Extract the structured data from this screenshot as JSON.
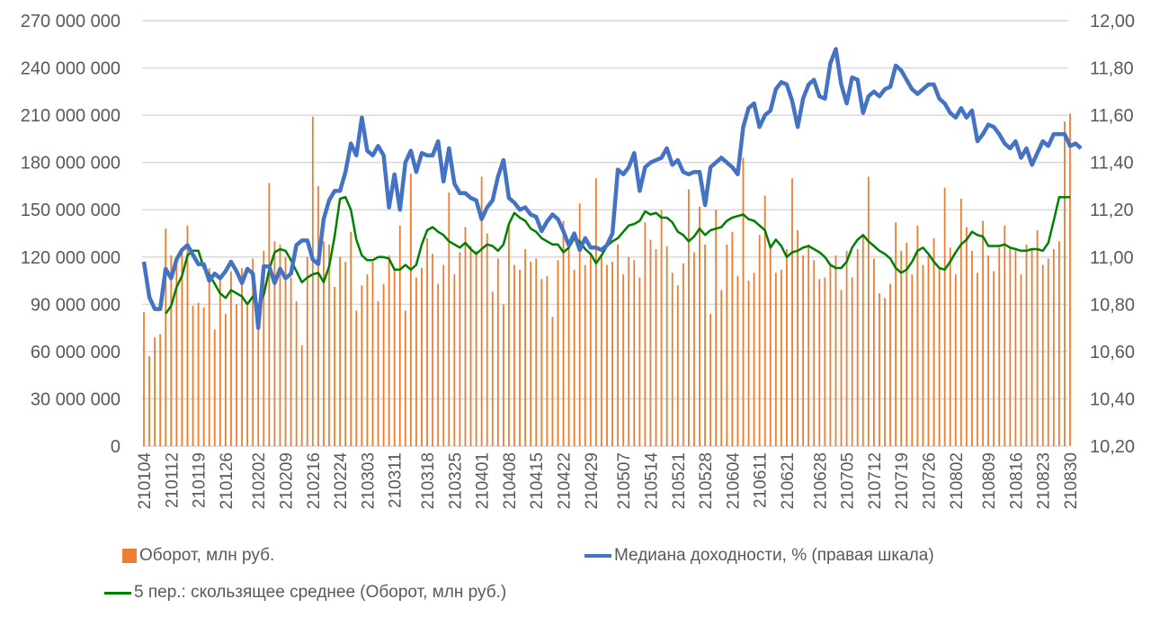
{
  "chart_data": {
    "type": "bar+line",
    "title": "",
    "left_axis": {
      "min": 0,
      "max": 270000000,
      "step": 30000000,
      "tick_labels": [
        "0",
        "30 000 000",
        "60 000 000",
        "90 000 000",
        "120 000 000",
        "150 000 000",
        "180 000 000",
        "210 000 000",
        "240 000 000",
        "270 000 000"
      ]
    },
    "right_axis": {
      "min": 10.2,
      "max": 12.0,
      "step": 0.2,
      "tick_labels": [
        "10,20",
        "10,40",
        "10,60",
        "10,80",
        "11,00",
        "11,20",
        "11,40",
        "11,60",
        "11,80",
        "12,00"
      ]
    },
    "x_tick_labels": [
      "210104",
      "210112",
      "210119",
      "210126",
      "210202",
      "210209",
      "210216",
      "210224",
      "210303",
      "210311",
      "210318",
      "210325",
      "210401",
      "210408",
      "210415",
      "210422",
      "210429",
      "210507",
      "210514",
      "210521",
      "210528",
      "210604",
      "210611",
      "210621",
      "210628",
      "210705",
      "210712",
      "210719",
      "210726",
      "210802",
      "210809",
      "210816",
      "210823",
      "210830"
    ],
    "grid": true,
    "legend_position": "bottom",
    "series": [
      {
        "name": "Оборот, млн руб.",
        "type": "bar",
        "axis": "left",
        "color": "#ED7D31",
        "values": [
          85,
          57,
          69,
          71,
          138,
          121,
          116,
          125,
          140,
          89,
          91,
          88,
          113,
          74,
          108,
          84,
          111,
          90,
          113,
          89,
          119,
          82,
          124,
          167,
          130,
          128,
          120,
          107,
          92,
          64,
          120,
          209,
          165,
          130,
          128,
          101,
          120,
          117,
          136,
          86,
          102,
          109,
          117,
          92,
          103,
          121,
          113,
          140,
          86,
          173,
          107,
          113,
          132,
          122,
          103,
          115,
          161,
          109,
          123,
          139,
          127,
          124,
          171,
          135,
          98,
          119,
          90,
          141,
          115,
          112,
          125,
          117,
          119,
          106,
          108,
          82,
          118,
          143,
          127,
          112,
          154,
          115,
          122,
          170,
          121,
          115,
          117,
          128,
          109,
          120,
          118,
          107,
          142,
          131,
          125,
          150,
          127,
          110,
          102,
          116,
          163,
          123,
          152,
          128,
          84,
          150,
          99,
          128,
          136,
          108,
          183,
          105,
          110,
          134,
          159,
          128,
          110,
          112,
          125,
          170,
          137,
          121,
          128,
          118,
          106,
          107,
          115,
          121,
          99,
          124,
          107,
          125,
          133,
          171,
          119,
          97,
          94,
          103,
          142,
          124,
          129,
          109,
          140,
          115,
          121,
          132,
          113,
          164,
          126,
          109,
          157,
          139,
          124,
          110,
          143,
          121,
          111,
          126,
          140,
          126,
          124,
          109,
          128,
          125,
          137,
          115,
          119,
          125,
          130,
          206,
          211
        ]
      },
      {
        "name": "Медиана доходности, % (правая шкала)",
        "type": "line",
        "axis": "right",
        "color": "#4472C4",
        "values": [
          10.98,
          10.83,
          10.78,
          10.78,
          10.95,
          10.91,
          10.99,
          11.03,
          11.05,
          11.01,
          10.97,
          10.97,
          10.9,
          10.93,
          10.91,
          10.94,
          10.98,
          10.94,
          10.89,
          10.95,
          10.93,
          10.7,
          10.96,
          10.96,
          10.89,
          10.95,
          10.91,
          10.93,
          11.05,
          11.07,
          11.07,
          10.99,
          10.97,
          11.16,
          11.24,
          11.28,
          11.28,
          11.36,
          11.48,
          11.43,
          11.59,
          11.45,
          11.43,
          11.47,
          11.43,
          11.21,
          11.35,
          11.2,
          11.4,
          11.45,
          11.36,
          11.44,
          11.43,
          11.43,
          11.49,
          11.32,
          11.46,
          11.31,
          11.27,
          11.27,
          11.25,
          11.24,
          11.16,
          11.21,
          11.24,
          11.34,
          11.41,
          11.25,
          11.23,
          11.2,
          11.21,
          11.18,
          11.17,
          11.11,
          11.15,
          11.18,
          11.16,
          11.11,
          11.05,
          11.1,
          11.03,
          11.08,
          11.04,
          11.04,
          11.03,
          11.05,
          11.1,
          11.37,
          11.35,
          11.38,
          11.44,
          11.28,
          11.38,
          11.4,
          11.41,
          11.42,
          11.46,
          11.39,
          11.41,
          11.36,
          11.35,
          11.36,
          11.36,
          11.22,
          11.38,
          11.4,
          11.42,
          11.4,
          11.38,
          11.35,
          11.55,
          11.63,
          11.65,
          11.55,
          11.6,
          11.62,
          11.71,
          11.74,
          11.73,
          11.66,
          11.55,
          11.67,
          11.73,
          11.75,
          11.68,
          11.67,
          11.82,
          11.88,
          11.73,
          11.65,
          11.76,
          11.75,
          11.61,
          11.68,
          11.7,
          11.68,
          11.71,
          11.72,
          11.81,
          11.79,
          11.75,
          11.71,
          11.69,
          11.71,
          11.73,
          11.73,
          11.67,
          11.65,
          11.61,
          11.59,
          11.63,
          11.59,
          11.62,
          11.49,
          11.52,
          11.56,
          11.55,
          11.52,
          11.48,
          11.46,
          11.49,
          11.42,
          11.46,
          11.39,
          11.44,
          11.49,
          11.47,
          11.52,
          11.52,
          11.52,
          11.47,
          11.48,
          11.46
        ]
      },
      {
        "name": "5 пер.: скользящее среднее (Оборот, млн руб.)",
        "type": "line",
        "axis": "left",
        "color": "#008000",
        "values": [
          null,
          null,
          null,
          null,
          84,
          89,
          101,
          108,
          121,
          124,
          124,
          113,
          109,
          103,
          97,
          94,
          99,
          97,
          95,
          90,
          95,
          89,
          96,
          112,
          123,
          125,
          124,
          118,
          111,
          104,
          107,
          109,
          110,
          104,
          114,
          133,
          157,
          158,
          150,
          131,
          121,
          118,
          118,
          120,
          120,
          119,
          112,
          112,
          115,
          112,
          115,
          128,
          137,
          139,
          136,
          134,
          130,
          128,
          126,
          129,
          125,
          122,
          125,
          128,
          127,
          124,
          128,
          141,
          148,
          145,
          143,
          138,
          136,
          132,
          130,
          128,
          128,
          123,
          126,
          132,
          130,
          125,
          122,
          116,
          121,
          127,
          130,
          132,
          136,
          140,
          141,
          143,
          149,
          147,
          148,
          145,
          145,
          142,
          136,
          134,
          130,
          133,
          138,
          134,
          137,
          138,
          139,
          143,
          145,
          146,
          147,
          144,
          143,
          140,
          137,
          126,
          131,
          127,
          120,
          123,
          124,
          126,
          127,
          125,
          123,
          120,
          115,
          113,
          113,
          117,
          126,
          131,
          134,
          130,
          127,
          124,
          122,
          119,
          113,
          110,
          112,
          117,
          124,
          126,
          122,
          117,
          113,
          112,
          117,
          123,
          128,
          131,
          136,
          134,
          133,
          127,
          127,
          127,
          128,
          126,
          125,
          124,
          124,
          125,
          125,
          124,
          129,
          143,
          158,
          158,
          158
        ]
      }
    ]
  },
  "legend": {
    "bar_label": "Оборот, млн руб.",
    "blue_label": "Медиана доходности, % (правая шкала)",
    "green_label": "5 пер.: скользящее среднее (Оборот, млн руб.)"
  }
}
